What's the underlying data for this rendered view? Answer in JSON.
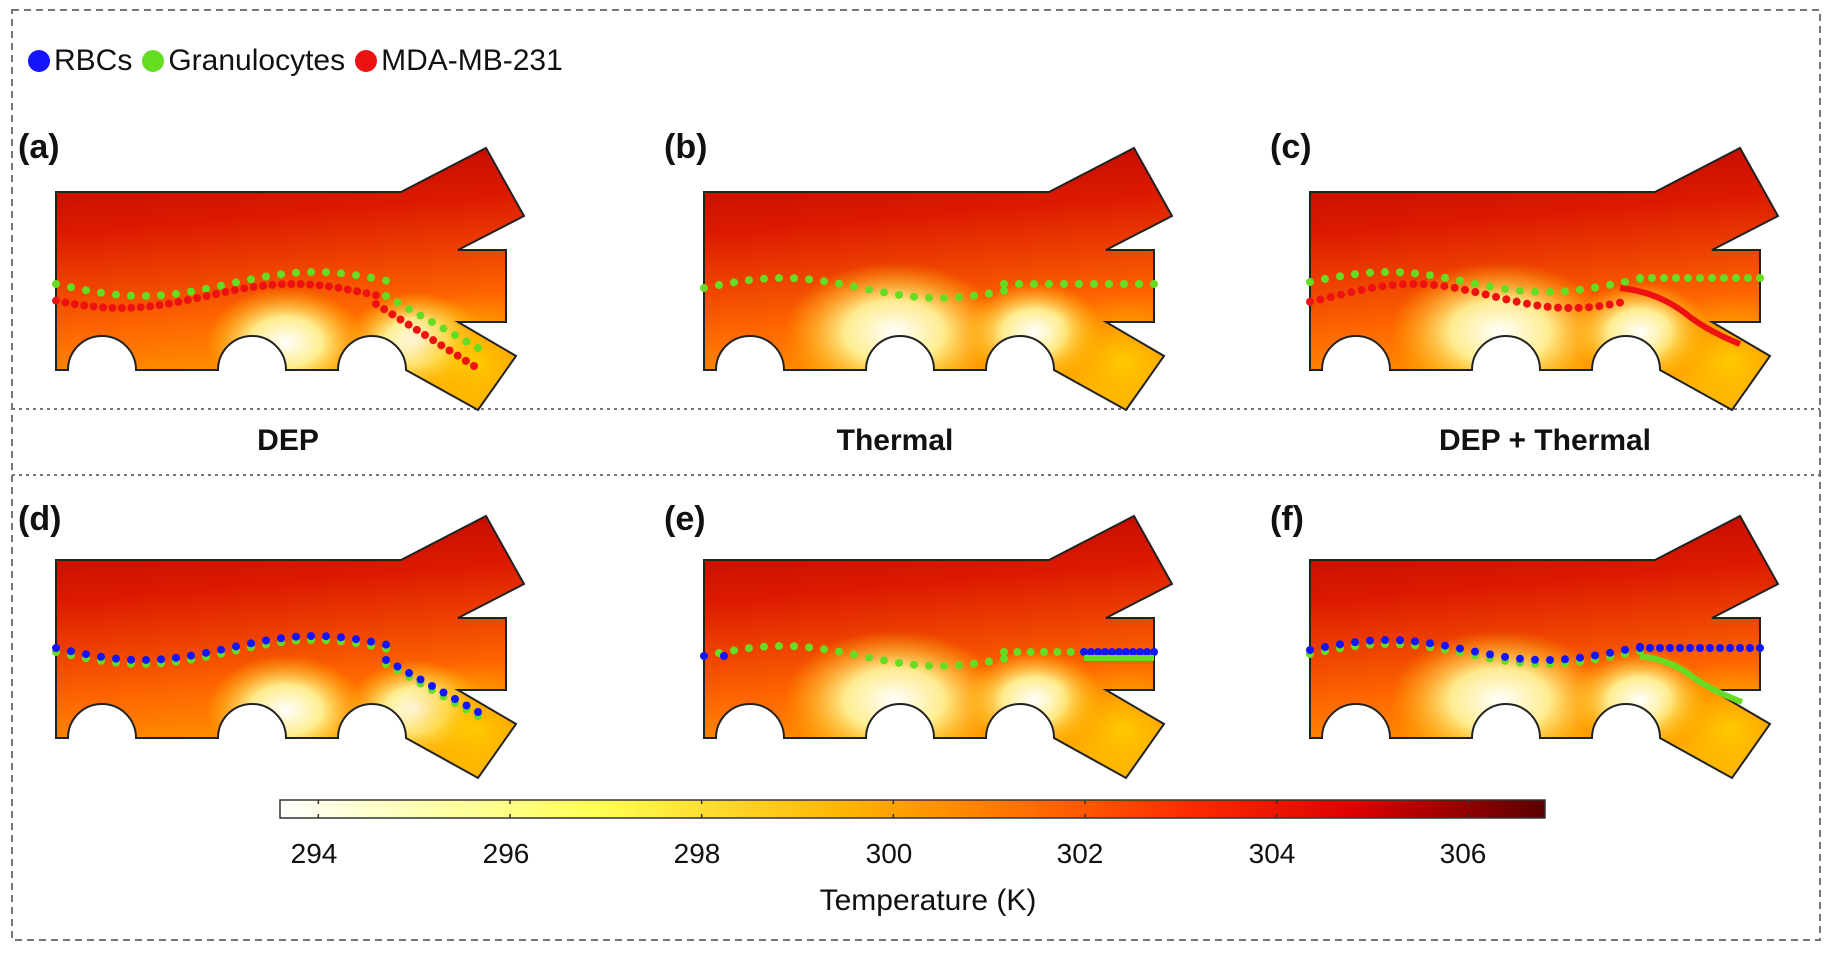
{
  "legend": {
    "items": [
      {
        "label": "RBCs",
        "color": "#1414ff"
      },
      {
        "label": "Granulocytes",
        "color": "#66dd22"
      },
      {
        "label": "MDA-MB-231",
        "color": "#ee1111"
      }
    ]
  },
  "panels": [
    {
      "label": "(a)"
    },
    {
      "label": "(b)"
    },
    {
      "label": "(c)"
    },
    {
      "label": "(d)"
    },
    {
      "label": "(e)"
    },
    {
      "label": "(f)"
    }
  ],
  "columns": [
    "DEP",
    "Thermal",
    "DEP + Thermal"
  ],
  "colorbar": {
    "title": "Temperature (K)",
    "min": 293.6,
    "max": 306.8,
    "ticks": [
      "294",
      "296",
      "298",
      "300",
      "302",
      "304",
      "306"
    ],
    "tick_values": [
      294,
      296,
      298,
      300,
      302,
      304,
      306
    ],
    "colormap": [
      "#ffffff",
      "#ffff55",
      "#ffaa00",
      "#ff2200",
      "#dd0000",
      "#660000"
    ]
  }
}
